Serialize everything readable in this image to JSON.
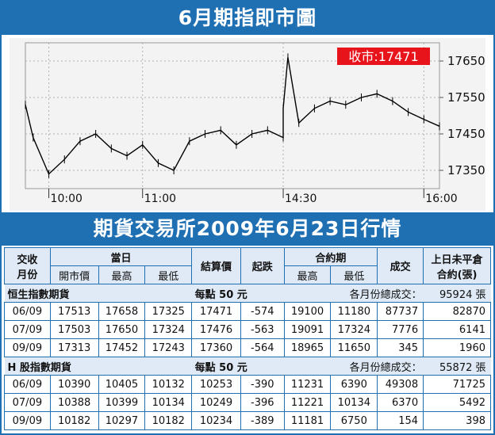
{
  "header": {
    "title": "6月期指即市圖"
  },
  "chart_data": {
    "type": "line",
    "close_label": "收市:17471",
    "y_ticks": [
      17350,
      17450,
      17550,
      17650
    ],
    "x_ticks": [
      "10:00",
      "11:00",
      "14:30",
      "16:00"
    ],
    "ylim": [
      17300,
      17700
    ],
    "series": [
      {
        "x": [
          "09:45",
          "09:50",
          "10:00",
          "10:10",
          "10:20",
          "10:30",
          "10:40",
          "10:50",
          "11:00",
          "11:10",
          "11:20",
          "11:30",
          "11:40",
          "11:50",
          "12:00",
          "12:10",
          "12:20",
          "12:30",
          "14:30",
          "14:33",
          "14:40",
          "14:50",
          "15:00",
          "15:10",
          "15:20",
          "15:30",
          "15:40",
          "15:50",
          "16:00",
          "16:10"
        ],
        "values": [
          17530,
          17440,
          17340,
          17380,
          17430,
          17450,
          17410,
          17390,
          17420,
          17370,
          17350,
          17430,
          17450,
          17460,
          17420,
          17450,
          17460,
          17440,
          17520,
          17660,
          17480,
          17520,
          17540,
          17530,
          17550,
          17560,
          17540,
          17510,
          17490,
          17471
        ]
      }
    ]
  },
  "banner2": {
    "title": "期貨交易所2009年6月23日行情"
  },
  "table": {
    "col_month": "交收\n月份",
    "group_day": "當日",
    "col_open": "開市價",
    "col_high": "最高",
    "col_low": "最低",
    "col_settle": "結算價",
    "col_change": "起跌",
    "group_contract": "合約期",
    "col_c_high": "最高",
    "col_c_low": "最低",
    "col_volume": "成交",
    "col_oi": "上日未平倉\n合約(張)",
    "sections": [
      {
        "name": "恒生指數期貨",
        "per_point": "每點 50 元",
        "total_label": "各月份總成交：",
        "total": "95924 張",
        "rows": [
          [
            "06/09",
            "17513",
            "17658",
            "17325",
            "17471",
            "-574",
            "19100",
            "11180",
            "87737",
            "82870"
          ],
          [
            "07/09",
            "17503",
            "17650",
            "17324",
            "17476",
            "-563",
            "19091",
            "17324",
            "7776",
            "6141"
          ],
          [
            "09/09",
            "17313",
            "17452",
            "17243",
            "17360",
            "-564",
            "18965",
            "11650",
            "345",
            "1960"
          ]
        ]
      },
      {
        "name": "H 股指數期貨",
        "per_point": "每點 50 元",
        "total_label": "各月份總成交：",
        "total": "55872 張",
        "rows": [
          [
            "06/09",
            "10390",
            "10405",
            "10132",
            "10253",
            "-390",
            "11231",
            "6390",
            "49308",
            "71725"
          ],
          [
            "07/09",
            "10388",
            "10399",
            "10134",
            "10249",
            "-396",
            "11221",
            "10134",
            "6370",
            "5492"
          ],
          [
            "09/09",
            "10182",
            "10297",
            "10182",
            "10234",
            "-389",
            "11181",
            "6750",
            "154",
            "398"
          ]
        ]
      }
    ]
  },
  "colors": {
    "brand": "#1f6fb3",
    "label_bg": "#e8141c",
    "line": "#000000",
    "chart_bg": "#f3f3f3",
    "grid": "#b0b0b0"
  }
}
